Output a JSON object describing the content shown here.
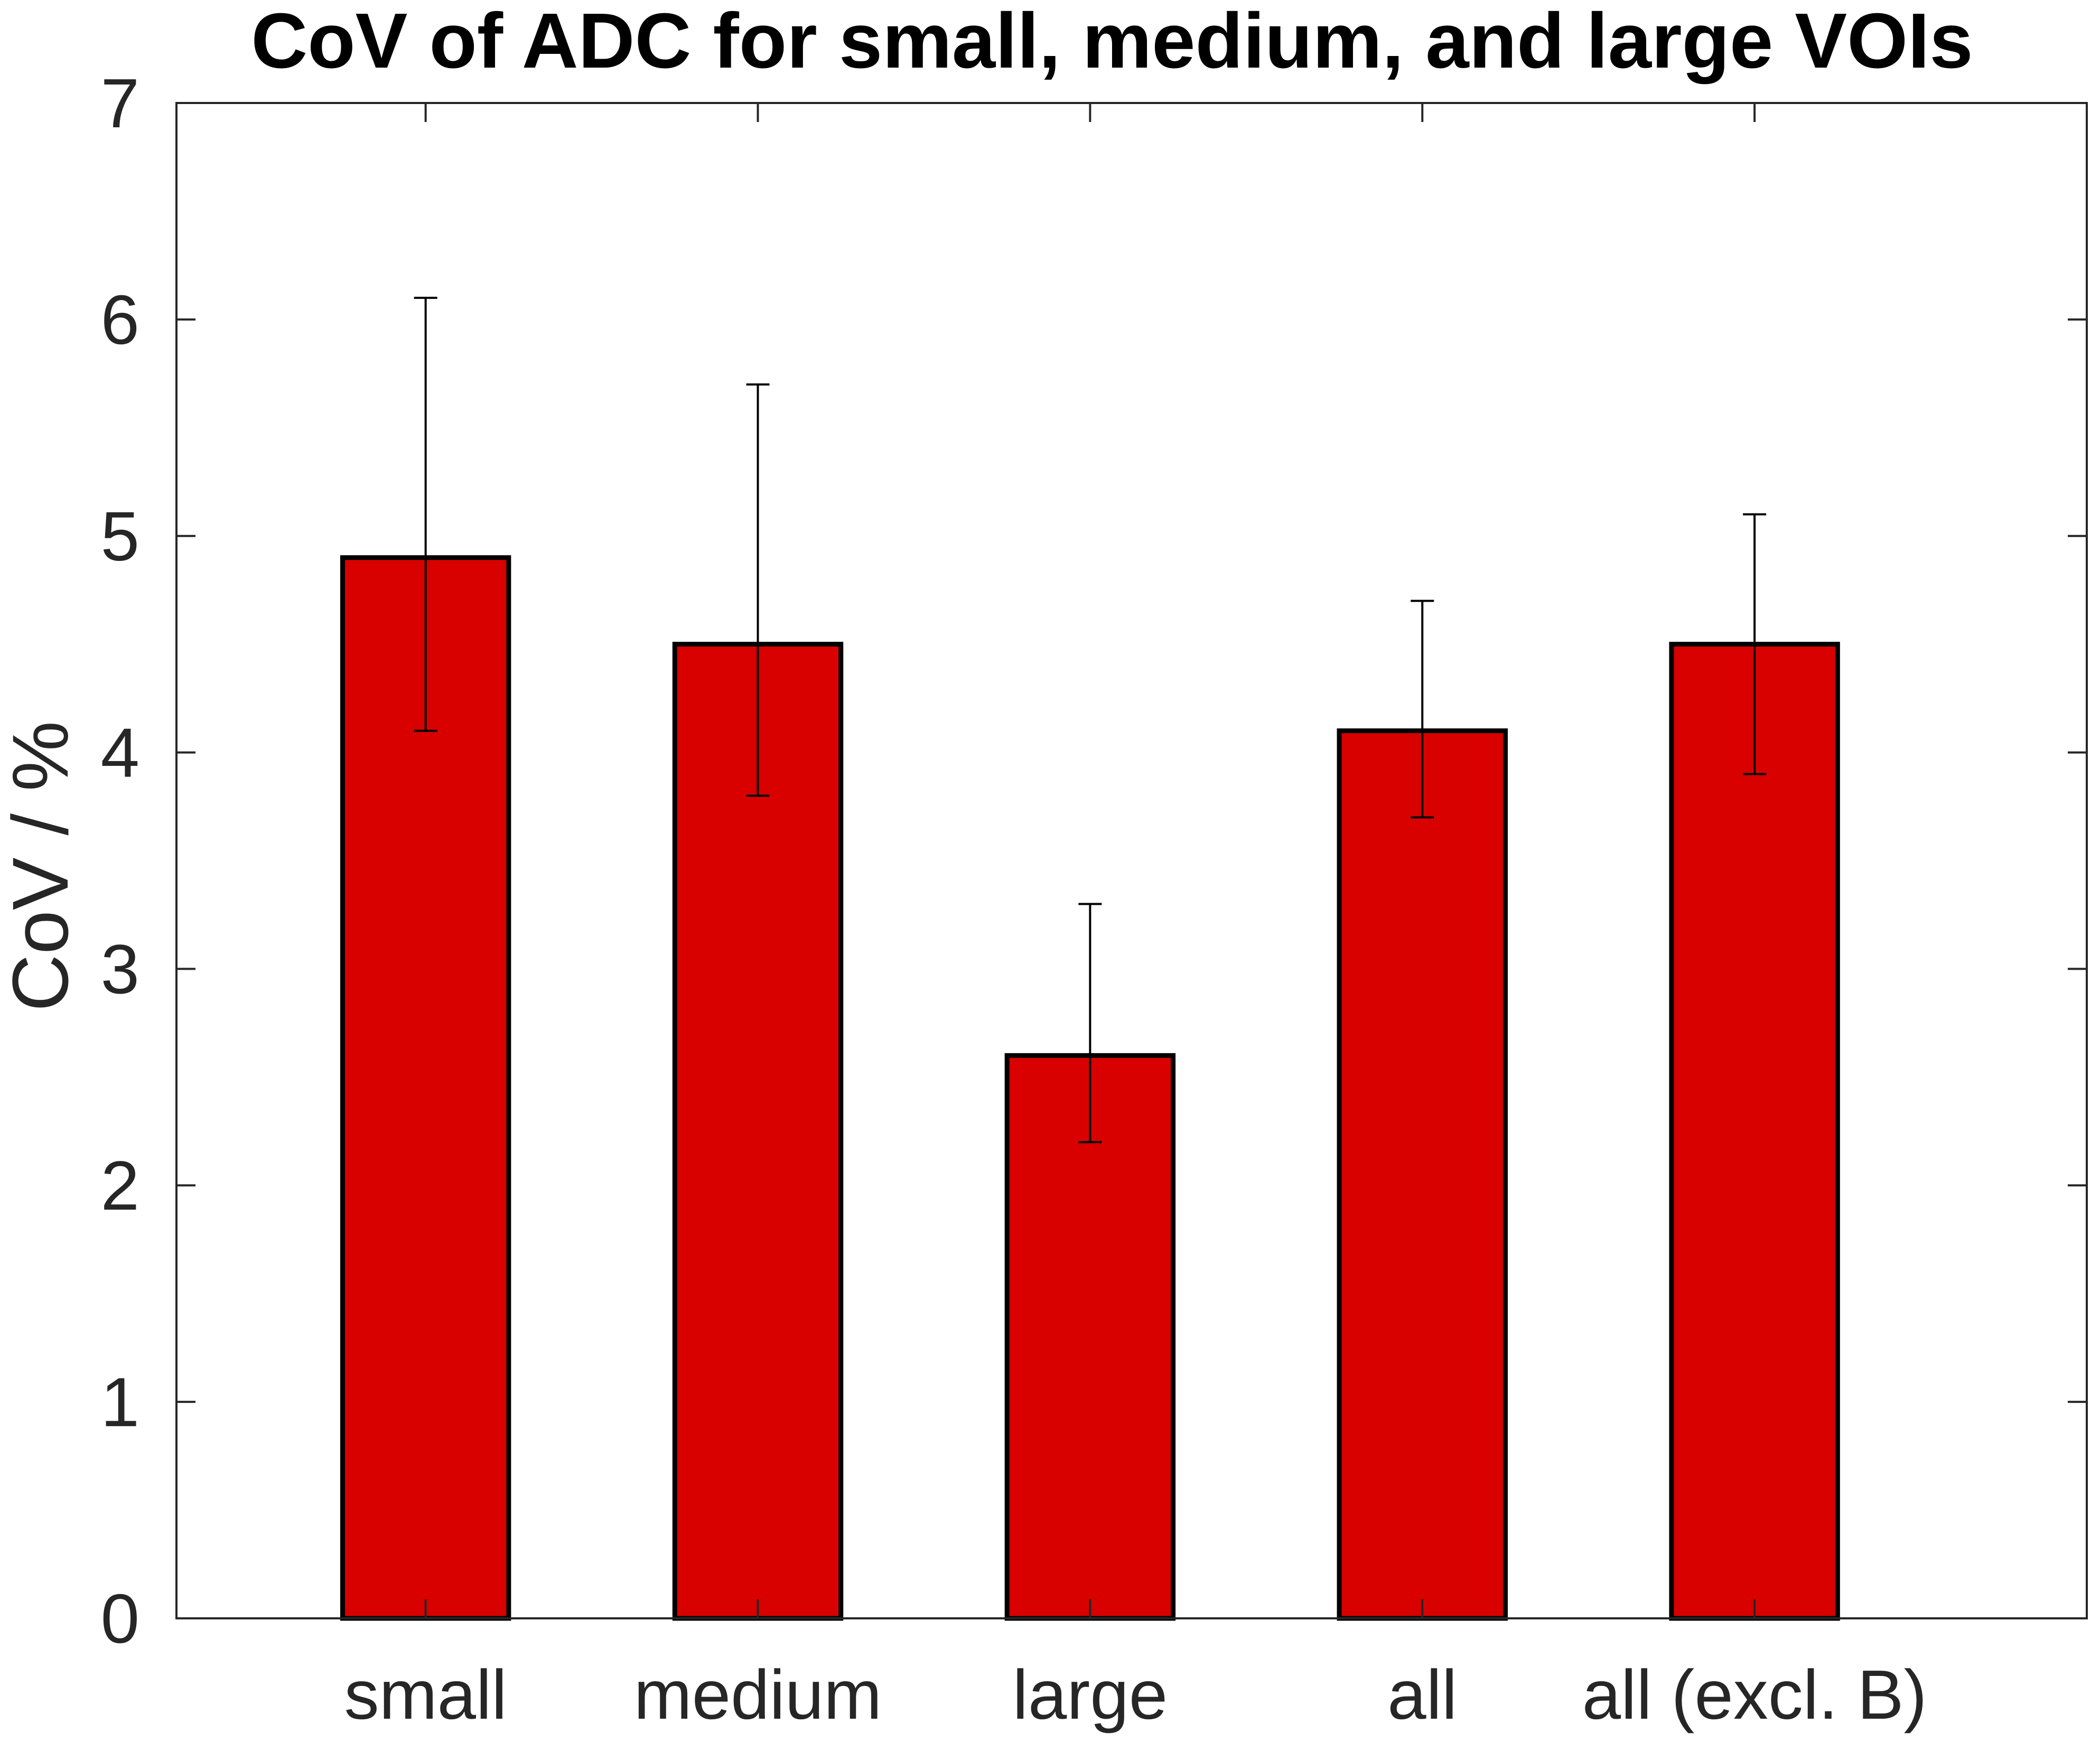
{
  "chart_data": {
    "type": "bar",
    "title": "CoV of ADC for small, medium, and large VOIs",
    "xlabel": "",
    "ylabel": "CoV / %",
    "categories": [
      "small",
      "medium",
      "large",
      "all",
      "all (excl. B)"
    ],
    "values": [
      4.9,
      4.5,
      2.6,
      4.1,
      4.5
    ],
    "error_low": [
      4.1,
      3.8,
      2.2,
      3.7,
      3.9
    ],
    "error_high": [
      6.1,
      5.7,
      3.3,
      4.7,
      5.1
    ],
    "ylim": [
      0,
      7
    ],
    "yticks": [
      "0",
      "1",
      "2",
      "3",
      "4",
      "5",
      "6",
      "7"
    ],
    "x_positions": [
      1,
      2,
      3,
      4,
      5
    ],
    "xlim": [
      0.25,
      6.0
    ],
    "grid": false,
    "legend": "none",
    "bar_color": "#d90000",
    "edge_color": "#000000"
  }
}
